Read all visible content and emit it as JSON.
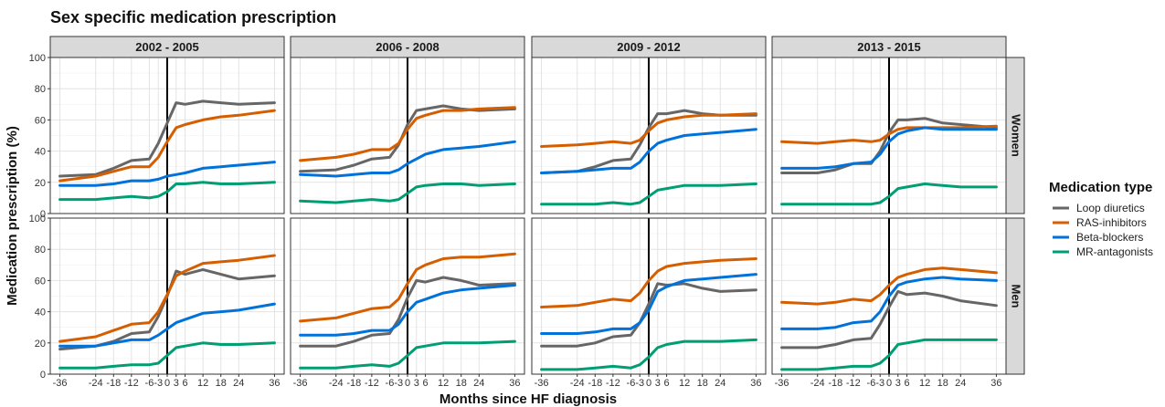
{
  "chart_data": {
    "type": "line",
    "title": "Sex specific medication prescription",
    "xlabel": "Months since HF diagnosis",
    "ylabel": "Medication prescription (%)",
    "xlim": [
      -36,
      36
    ],
    "ylim": [
      0,
      100
    ],
    "x_ticks": [
      -36,
      -24,
      -18,
      -12,
      -6,
      -3,
      0,
      3,
      6,
      12,
      18,
      24,
      36
    ],
    "x_tick_labels": [
      "-36",
      "-24",
      "-18",
      "-12",
      "-6",
      "-3",
      "0",
      "3",
      "6",
      "12",
      "18",
      "24",
      "36"
    ],
    "y_ticks": [
      0,
      20,
      40,
      60,
      80,
      100
    ],
    "grid": true,
    "vline_x": 0,
    "periods": [
      "2002 - 2005",
      "2006 - 2008",
      "2009 - 2012",
      "2013 - 2015"
    ],
    "sexes": [
      "Women",
      "Men"
    ],
    "legend": {
      "title": "Medication type",
      "position": "right",
      "items": [
        {
          "name": "Loop diuretics",
          "color": "#666666"
        },
        {
          "name": "RAS-inhibitors",
          "color": "#d55e00"
        },
        {
          "name": "Beta-blockers",
          "color": "#0072d9"
        },
        {
          "name": "MR-antagonists",
          "color": "#009e73"
        }
      ]
    },
    "x": [
      -36,
      -24,
      -18,
      -12,
      -6,
      -3,
      0,
      3,
      6,
      12,
      18,
      24,
      36
    ],
    "panels": [
      {
        "period": "2002 - 2005",
        "sex": "Women",
        "series": {
          "Loop diuretics": [
            24,
            25,
            29,
            34,
            35,
            45,
            58,
            71,
            70,
            72,
            71,
            70,
            71
          ],
          "RAS-inhibitors": [
            21,
            24,
            27,
            30,
            30,
            36,
            46,
            55,
            57,
            60,
            62,
            63,
            66
          ],
          "Beta-blockers": [
            18,
            18,
            19,
            21,
            21,
            22,
            24,
            25,
            26,
            29,
            30,
            31,
            33
          ],
          "MR-antagonists": [
            9,
            9,
            10,
            11,
            10,
            11,
            14,
            19,
            19,
            20,
            19,
            19,
            20
          ]
        }
      },
      {
        "period": "2006 - 2008",
        "sex": "Women",
        "series": {
          "Loop diuretics": [
            27,
            28,
            31,
            35,
            36,
            44,
            57,
            66,
            67,
            69,
            67,
            66,
            67
          ],
          "RAS-inhibitors": [
            34,
            36,
            38,
            41,
            41,
            45,
            54,
            61,
            63,
            66,
            66,
            67,
            68
          ],
          "Beta-blockers": [
            25,
            24,
            25,
            26,
            26,
            28,
            32,
            35,
            38,
            41,
            42,
            43,
            46
          ],
          "MR-antagonists": [
            8,
            7,
            8,
            9,
            8,
            9,
            13,
            17,
            18,
            19,
            19,
            18,
            19
          ]
        }
      },
      {
        "period": "2009 - 2012",
        "sex": "Women",
        "series": {
          "Loop diuretics": [
            26,
            27,
            30,
            34,
            35,
            44,
            55,
            64,
            64,
            66,
            64,
            63,
            63
          ],
          "RAS-inhibitors": [
            43,
            44,
            45,
            46,
            45,
            47,
            53,
            58,
            60,
            62,
            63,
            63,
            64
          ],
          "Beta-blockers": [
            26,
            27,
            28,
            29,
            29,
            33,
            40,
            45,
            47,
            50,
            51,
            52,
            54
          ],
          "MR-antagonists": [
            6,
            6,
            6,
            7,
            6,
            7,
            11,
            15,
            16,
            18,
            18,
            18,
            19
          ]
        }
      },
      {
        "period": "2013 - 2015",
        "sex": "Women",
        "series": {
          "Loop diuretics": [
            26,
            26,
            28,
            32,
            32,
            40,
            52,
            60,
            60,
            61,
            58,
            57,
            55
          ],
          "RAS-inhibitors": [
            46,
            45,
            46,
            47,
            46,
            47,
            51,
            54,
            55,
            55,
            55,
            55,
            56
          ],
          "Beta-blockers": [
            29,
            29,
            30,
            32,
            33,
            38,
            46,
            51,
            53,
            55,
            54,
            54,
            54
          ],
          "MR-antagonists": [
            6,
            6,
            6,
            6,
            6,
            7,
            11,
            16,
            17,
            19,
            18,
            17,
            17
          ]
        }
      },
      {
        "period": "2002 - 2005",
        "sex": "Men",
        "series": {
          "Loop diuretics": [
            16,
            18,
            21,
            26,
            27,
            37,
            50,
            66,
            64,
            67,
            64,
            61,
            63
          ],
          "RAS-inhibitors": [
            21,
            24,
            28,
            32,
            33,
            40,
            51,
            63,
            66,
            71,
            72,
            73,
            76
          ],
          "Beta-blockers": [
            18,
            18,
            20,
            22,
            22,
            25,
            29,
            33,
            35,
            39,
            40,
            41,
            45
          ],
          "MR-antagonists": [
            4,
            4,
            5,
            6,
            6,
            7,
            12,
            17,
            18,
            20,
            19,
            19,
            20
          ]
        }
      },
      {
        "period": "2006 - 2008",
        "sex": "Men",
        "series": {
          "Loop diuretics": [
            18,
            18,
            21,
            25,
            26,
            35,
            49,
            60,
            59,
            62,
            60,
            57,
            58
          ],
          "RAS-inhibitors": [
            34,
            36,
            39,
            42,
            43,
            48,
            58,
            67,
            70,
            74,
            75,
            75,
            77
          ],
          "Beta-blockers": [
            25,
            25,
            26,
            28,
            28,
            32,
            40,
            46,
            48,
            52,
            54,
            55,
            57
          ],
          "MR-antagonists": [
            4,
            4,
            5,
            6,
            5,
            7,
            12,
            17,
            18,
            20,
            20,
            20,
            21
          ]
        }
      },
      {
        "period": "2009 - 2012",
        "sex": "Men",
        "series": {
          "Loop diuretics": [
            18,
            18,
            20,
            24,
            25,
            33,
            45,
            58,
            57,
            58,
            55,
            53,
            54
          ],
          "RAS-inhibitors": [
            43,
            44,
            46,
            48,
            47,
            52,
            60,
            66,
            69,
            71,
            72,
            73,
            74
          ],
          "Beta-blockers": [
            26,
            26,
            27,
            29,
            29,
            33,
            41,
            53,
            56,
            60,
            61,
            62,
            64
          ],
          "MR-antagonists": [
            3,
            3,
            4,
            5,
            4,
            6,
            11,
            17,
            19,
            21,
            21,
            21,
            22
          ]
        }
      },
      {
        "period": "2013 - 2015",
        "sex": "Men",
        "series": {
          "Loop diuretics": [
            17,
            17,
            19,
            22,
            23,
            32,
            43,
            53,
            51,
            52,
            50,
            47,
            44
          ],
          "RAS-inhibitors": [
            46,
            45,
            46,
            48,
            47,
            51,
            57,
            62,
            64,
            67,
            68,
            67,
            65
          ],
          "Beta-blockers": [
            29,
            29,
            30,
            33,
            34,
            40,
            50,
            57,
            59,
            61,
            62,
            61,
            60
          ],
          "MR-antagonists": [
            3,
            3,
            4,
            5,
            5,
            7,
            12,
            19,
            20,
            22,
            22,
            22,
            22
          ]
        }
      }
    ]
  }
}
